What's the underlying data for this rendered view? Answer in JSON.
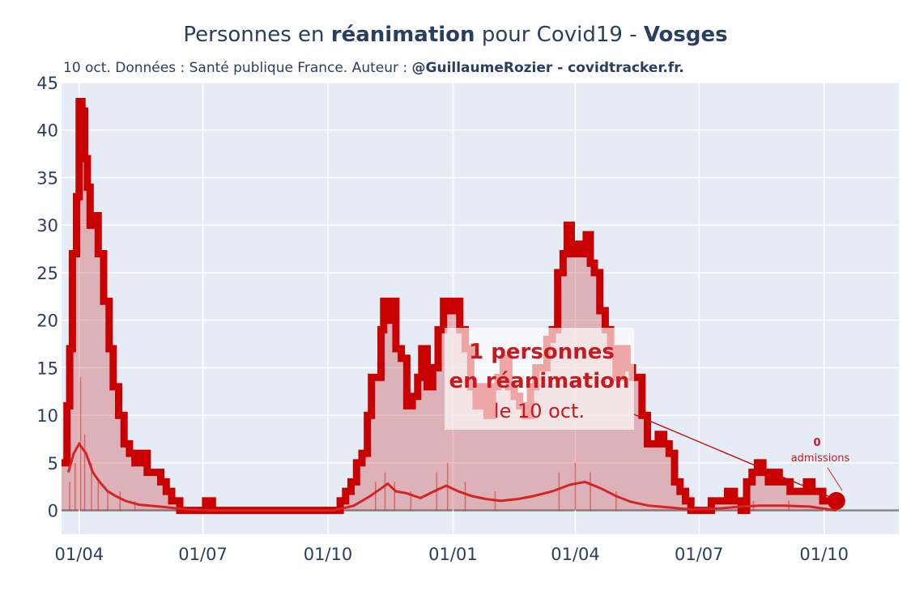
{
  "header": {
    "title_pre": "Personnes en ",
    "title_bold1": "réanimation",
    "title_mid": " pour Covid19 - ",
    "title_bold2": "Vosges",
    "subtitle_pre": "10 oct. Données : Santé publique France. Auteur : ",
    "subtitle_bold": "@GuillaumeRozier - covidtracker.fr."
  },
  "colors": {
    "main_line": "#c80000",
    "fill": "rgba(200,0,0,0.25)",
    "admissions_line": "#d42525",
    "plot_bg": "#e5ecf6",
    "grid": "#ffffff"
  },
  "annotation": {
    "line1": "1 personnes",
    "line2": "en réanimation",
    "line3": "le 10 oct."
  },
  "admissions_annotation": {
    "value": "0",
    "label": "admissions"
  },
  "chart_data": {
    "type": "line",
    "x_range": [
      "2020-03-19",
      "2021-11-25"
    ],
    "ylim": [
      -2.5,
      45
    ],
    "y_ticks": [
      0,
      5,
      10,
      15,
      20,
      25,
      30,
      35,
      40,
      45
    ],
    "x_ticks": [
      {
        "date": "2020-04-01",
        "label": "01/04"
      },
      {
        "date": "2020-07-01",
        "label": "01/07"
      },
      {
        "date": "2020-10-01",
        "label": "01/10"
      },
      {
        "date": "2021-01-01",
        "label": "01/01"
      },
      {
        "date": "2021-04-01",
        "label": "01/04"
      },
      {
        "date": "2021-07-01",
        "label": "01/07"
      },
      {
        "date": "2021-10-01",
        "label": "01/10"
      }
    ],
    "grid": true,
    "series": [
      {
        "key": "reanimation",
        "points": [
          [
            "2020-03-19",
            5
          ],
          [
            "2020-03-23",
            11
          ],
          [
            "2020-03-25",
            17
          ],
          [
            "2020-03-27",
            27
          ],
          [
            "2020-03-30",
            33
          ],
          [
            "2020-04-01",
            43
          ],
          [
            "2020-04-03",
            42
          ],
          [
            "2020-04-05",
            37
          ],
          [
            "2020-04-07",
            34
          ],
          [
            "2020-04-09",
            30
          ],
          [
            "2020-04-12",
            31
          ],
          [
            "2020-04-15",
            27
          ],
          [
            "2020-04-19",
            22
          ],
          [
            "2020-04-23",
            17
          ],
          [
            "2020-04-26",
            13
          ],
          [
            "2020-04-30",
            10
          ],
          [
            "2020-05-04",
            7
          ],
          [
            "2020-05-08",
            6
          ],
          [
            "2020-05-12",
            5
          ],
          [
            "2020-05-16",
            6
          ],
          [
            "2020-05-21",
            4
          ],
          [
            "2020-05-26",
            4
          ],
          [
            "2020-05-31",
            3
          ],
          [
            "2020-06-04",
            2
          ],
          [
            "2020-06-08",
            1
          ],
          [
            "2020-06-14",
            0
          ],
          [
            "2020-06-25",
            0
          ],
          [
            "2020-07-03",
            1
          ],
          [
            "2020-07-08",
            0
          ],
          [
            "2020-09-30",
            0
          ],
          [
            "2020-10-06",
            0
          ],
          [
            "2020-10-10",
            1
          ],
          [
            "2020-10-14",
            2
          ],
          [
            "2020-10-18",
            3
          ],
          [
            "2020-10-22",
            5
          ],
          [
            "2020-10-26",
            6
          ],
          [
            "2020-10-30",
            10
          ],
          [
            "2020-11-02",
            14
          ],
          [
            "2020-11-06",
            14
          ],
          [
            "2020-11-09",
            19
          ],
          [
            "2020-11-11",
            22
          ],
          [
            "2020-11-14",
            20
          ],
          [
            "2020-11-17",
            22
          ],
          [
            "2020-11-20",
            17
          ],
          [
            "2020-11-24",
            16
          ],
          [
            "2020-11-28",
            11
          ],
          [
            "2020-12-02",
            12
          ],
          [
            "2020-12-06",
            14
          ],
          [
            "2020-12-09",
            17
          ],
          [
            "2020-12-13",
            13
          ],
          [
            "2020-12-17",
            15
          ],
          [
            "2020-12-21",
            19
          ],
          [
            "2020-12-25",
            22
          ],
          [
            "2020-12-29",
            21
          ],
          [
            "2021-01-02",
            22
          ],
          [
            "2021-01-06",
            19
          ],
          [
            "2021-01-10",
            17
          ],
          [
            "2021-01-14",
            13
          ],
          [
            "2021-01-18",
            11
          ],
          [
            "2021-01-22",
            13
          ],
          [
            "2021-01-26",
            10
          ],
          [
            "2021-01-30",
            13
          ],
          [
            "2021-02-03",
            14
          ],
          [
            "2021-02-07",
            16
          ],
          [
            "2021-02-11",
            13
          ],
          [
            "2021-02-15",
            12
          ],
          [
            "2021-02-19",
            11
          ],
          [
            "2021-02-23",
            10
          ],
          [
            "2021-02-27",
            13
          ],
          [
            "2021-03-03",
            15
          ],
          [
            "2021-03-07",
            15
          ],
          [
            "2021-03-11",
            18
          ],
          [
            "2021-03-15",
            19
          ],
          [
            "2021-03-19",
            25
          ],
          [
            "2021-03-23",
            27
          ],
          [
            "2021-03-26",
            30
          ],
          [
            "2021-03-29",
            27
          ],
          [
            "2021-04-01",
            28
          ],
          [
            "2021-04-05",
            27
          ],
          [
            "2021-04-09",
            29
          ],
          [
            "2021-04-12",
            26
          ],
          [
            "2021-04-15",
            25
          ],
          [
            "2021-04-19",
            21
          ],
          [
            "2021-04-23",
            19
          ],
          [
            "2021-04-27",
            17
          ],
          [
            "2021-05-01",
            14
          ],
          [
            "2021-05-05",
            17
          ],
          [
            "2021-05-09",
            15
          ],
          [
            "2021-05-13",
            14
          ],
          [
            "2021-05-17",
            14
          ],
          [
            "2021-05-20",
            10
          ],
          [
            "2021-05-24",
            7
          ],
          [
            "2021-05-28",
            7
          ],
          [
            "2021-06-01",
            8
          ],
          [
            "2021-06-05",
            7
          ],
          [
            "2021-06-09",
            6
          ],
          [
            "2021-06-13",
            3
          ],
          [
            "2021-06-17",
            2
          ],
          [
            "2021-06-21",
            1
          ],
          [
            "2021-06-25",
            0
          ],
          [
            "2021-07-05",
            0
          ],
          [
            "2021-07-10",
            1
          ],
          [
            "2021-07-16",
            1
          ],
          [
            "2021-07-22",
            2
          ],
          [
            "2021-07-27",
            1
          ],
          [
            "2021-08-01",
            0
          ],
          [
            "2021-08-05",
            3
          ],
          [
            "2021-08-09",
            4
          ],
          [
            "2021-08-13",
            5
          ],
          [
            "2021-08-17",
            4
          ],
          [
            "2021-08-21",
            3
          ],
          [
            "2021-08-25",
            4
          ],
          [
            "2021-08-29",
            3
          ],
          [
            "2021-09-02",
            3
          ],
          [
            "2021-09-06",
            2
          ],
          [
            "2021-09-10",
            2
          ],
          [
            "2021-09-14",
            2
          ],
          [
            "2021-09-18",
            3
          ],
          [
            "2021-09-22",
            2
          ],
          [
            "2021-09-26",
            2
          ],
          [
            "2021-09-30",
            1
          ],
          [
            "2021-10-04",
            1
          ],
          [
            "2021-10-10",
            1
          ]
        ]
      },
      {
        "key": "admissions_avg",
        "points": [
          [
            "2020-03-24",
            4
          ],
          [
            "2020-03-28",
            6
          ],
          [
            "2020-04-01",
            7
          ],
          [
            "2020-04-06",
            6
          ],
          [
            "2020-04-11",
            4
          ],
          [
            "2020-04-16",
            3
          ],
          [
            "2020-04-22",
            2
          ],
          [
            "2020-04-28",
            1.5
          ],
          [
            "2020-05-05",
            1
          ],
          [
            "2020-05-15",
            0.6
          ],
          [
            "2020-05-30",
            0.4
          ],
          [
            "2020-06-20",
            0.1
          ],
          [
            "2020-07-10",
            0
          ],
          [
            "2020-10-05",
            0
          ],
          [
            "2020-10-20",
            0.5
          ],
          [
            "2020-11-01",
            1.5
          ],
          [
            "2020-11-08",
            2.2
          ],
          [
            "2020-11-14",
            2.8
          ],
          [
            "2020-11-20",
            2
          ],
          [
            "2020-11-28",
            1.8
          ],
          [
            "2020-12-08",
            1.3
          ],
          [
            "2020-12-18",
            2
          ],
          [
            "2020-12-27",
            2.6
          ],
          [
            "2021-01-05",
            2
          ],
          [
            "2021-01-15",
            1.5
          ],
          [
            "2021-01-25",
            1.2
          ],
          [
            "2021-02-05",
            1
          ],
          [
            "2021-02-18",
            1.2
          ],
          [
            "2021-03-01",
            1.5
          ],
          [
            "2021-03-15",
            2
          ],
          [
            "2021-03-28",
            2.7
          ],
          [
            "2021-04-08",
            3
          ],
          [
            "2021-04-20",
            2.3
          ],
          [
            "2021-05-01",
            1.5
          ],
          [
            "2021-05-12",
            0.9
          ],
          [
            "2021-05-25",
            0.5
          ],
          [
            "2021-06-10",
            0.3
          ],
          [
            "2021-06-25",
            0.1
          ],
          [
            "2021-07-15",
            0.2
          ],
          [
            "2021-08-01",
            0.4
          ],
          [
            "2021-08-15",
            0.5
          ],
          [
            "2021-09-01",
            0.5
          ],
          [
            "2021-09-20",
            0.4
          ],
          [
            "2021-10-10",
            0
          ]
        ]
      }
    ],
    "admission_bars_sample": [
      [
        "2020-03-25",
        3
      ],
      [
        "2020-03-29",
        5
      ],
      [
        "2020-04-02",
        14
      ],
      [
        "2020-04-05",
        8
      ],
      [
        "2020-04-10",
        5
      ],
      [
        "2020-04-15",
        3
      ],
      [
        "2020-04-22",
        2
      ],
      [
        "2020-05-01",
        2
      ],
      [
        "2020-05-12",
        1
      ],
      [
        "2020-11-05",
        3
      ],
      [
        "2020-11-12",
        4
      ],
      [
        "2020-11-19",
        3
      ],
      [
        "2020-12-01",
        2
      ],
      [
        "2020-12-20",
        4
      ],
      [
        "2020-12-28",
        5
      ],
      [
        "2021-01-10",
        3
      ],
      [
        "2021-02-01",
        2
      ],
      [
        "2021-03-20",
        4
      ],
      [
        "2021-04-01",
        5
      ],
      [
        "2021-04-12",
        4
      ],
      [
        "2021-05-01",
        2
      ],
      [
        "2021-08-10",
        1
      ],
      [
        "2021-09-05",
        1
      ]
    ],
    "last_point": {
      "date": "2021-10-10",
      "value": 1
    }
  }
}
